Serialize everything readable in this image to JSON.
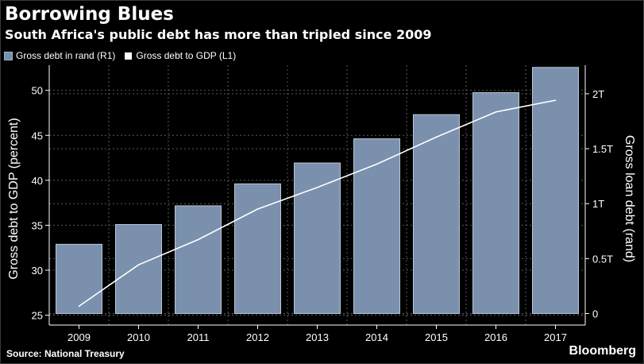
{
  "header": {
    "title": "Borrowing Blues",
    "subtitle": "South Africa's public debt has more than tripled since 2009"
  },
  "footer": {
    "source": "Source: National Treasury",
    "brand": "Bloomberg"
  },
  "colors": {
    "background": "#000000",
    "bar_fill": "#7a90ad",
    "bar_stroke": "#b9c7d8",
    "line": "#ffffff",
    "grid": "#5a5a5a"
  },
  "chart_data": {
    "type": "bar",
    "categories": [
      "2009",
      "2010",
      "2011",
      "2012",
      "2013",
      "2014",
      "2015",
      "2016",
      "2017"
    ],
    "series": [
      {
        "name": "Gross debt in rand (R1)",
        "type": "bar",
        "axis": "right",
        "values": [
          0.63,
          0.81,
          0.98,
          1.18,
          1.37,
          1.59,
          1.81,
          2.01,
          2.24
        ]
      },
      {
        "name": "Gross debt to GDP (L1)",
        "type": "line",
        "axis": "left",
        "values": [
          26.0,
          30.6,
          33.4,
          36.8,
          39.2,
          41.8,
          44.8,
          47.6,
          48.9
        ]
      }
    ],
    "left_axis": {
      "label": "Gross debt to GDP (percent)",
      "ticks": [
        25,
        30,
        35,
        40,
        45,
        50
      ],
      "range": [
        23.9,
        52.8
      ]
    },
    "right_axis": {
      "label": "Gross loan debt (rand)",
      "ticks": [
        0,
        0.5,
        1,
        1.5,
        2
      ],
      "tick_labels": [
        "0",
        "0.5T",
        "1T",
        "1.5T",
        "2T"
      ],
      "range": [
        -0.105,
        2.26
      ]
    },
    "grid": true,
    "legend_position": "top-left"
  }
}
